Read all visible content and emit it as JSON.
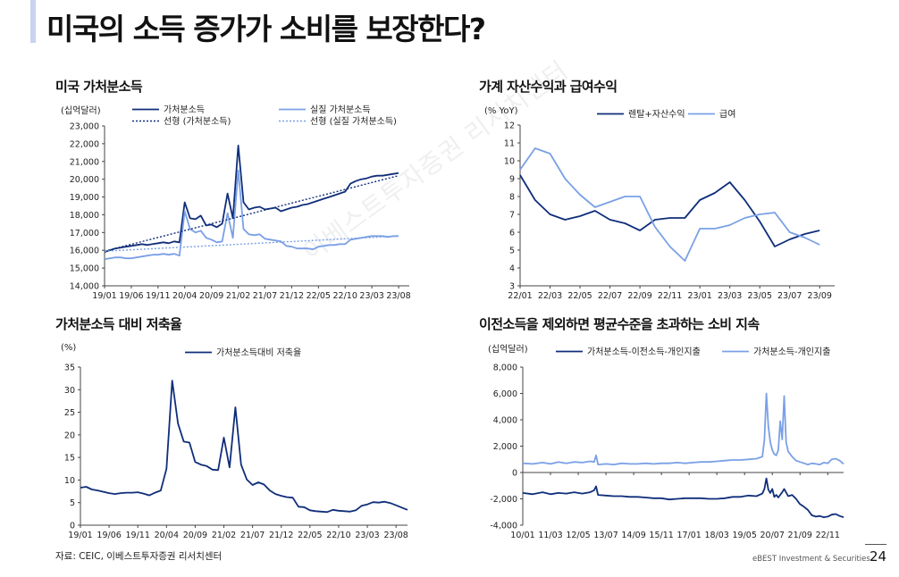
{
  "page": {
    "title": "미국의 소득 증가가 소비를 보장한다?",
    "source": "자료: CEIC, 이베스트투자증권 리서치센터",
    "brand": "eBEST Investment & Securities",
    "page_number": "24",
    "watermark": "이베스트투자증권 리서치센터"
  },
  "colors": {
    "dark": "#0f2e7a",
    "light": "#7aa0e6"
  },
  "chart_data": [
    {
      "id": "c1",
      "type": "line",
      "title": "미국 가처분소득",
      "unit": "(십억달러)",
      "ylim": [
        14000,
        23000
      ],
      "yticks": [
        "14,000",
        "15,000",
        "16,000",
        "17,000",
        "18,000",
        "19,000",
        "20,000",
        "21,000",
        "22,000",
        "23,000"
      ],
      "xlim": [
        0,
        57
      ],
      "xtick_pos": [
        0,
        5,
        10,
        15,
        20,
        25,
        30,
        35,
        40,
        45,
        50,
        55
      ],
      "xticks": [
        "19/01",
        "19/06",
        "19/11",
        "20/04",
        "20/09",
        "21/02",
        "21/07",
        "21/12",
        "22/05",
        "22/10",
        "23/03",
        "23/08"
      ],
      "legend": [
        "가처분소득",
        "실질 가처분소득",
        "선형 (가처분소득)",
        "선형 (실질 가처분소득)"
      ],
      "series": [
        {
          "name": "가처분소득",
          "style": "dark",
          "values": [
            15900,
            16000,
            16100,
            16150,
            16200,
            16250,
            16300,
            16350,
            16300,
            16350,
            16400,
            16450,
            16400,
            16500,
            16450,
            18700,
            17800,
            17750,
            17950,
            17400,
            17450,
            17300,
            17500,
            19200,
            17800,
            21900,
            18700,
            18300,
            18400,
            18450,
            18300,
            18350,
            18400,
            18200,
            18300,
            18400,
            18450,
            18550,
            18600,
            18700,
            18800,
            18900,
            19000,
            19100,
            19200,
            19300,
            19750,
            19900,
            20000,
            20050,
            20150,
            20200,
            20200,
            20250,
            20300,
            20350
          ]
        },
        {
          "name": "실질 가처분소득",
          "style": "light",
          "values": [
            15500,
            15550,
            15600,
            15600,
            15550,
            15550,
            15600,
            15650,
            15700,
            15750,
            15750,
            15800,
            15750,
            15800,
            15700,
            18200,
            17200,
            17000,
            17100,
            16700,
            16600,
            16450,
            16500,
            18100,
            16700,
            20500,
            17200,
            16900,
            16850,
            16900,
            16650,
            16600,
            16550,
            16500,
            16250,
            16200,
            16100,
            16100,
            16100,
            16050,
            16200,
            16250,
            16300,
            16300,
            16350,
            16350,
            16600,
            16650,
            16700,
            16750,
            16800,
            16800,
            16800,
            16750,
            16800,
            16800
          ]
        },
        {
          "name": "선형 (가처분소득)",
          "style": "dark-dotted",
          "from": [
            0,
            15950
          ],
          "to": [
            55,
            20200
          ]
        },
        {
          "name": "선형 (실질 가처분소득)",
          "style": "light-dotted",
          "from": [
            0,
            15950
          ],
          "to": [
            55,
            16800
          ]
        }
      ]
    },
    {
      "id": "c2",
      "type": "line",
      "title": "가계 자산수익과 급여수익",
      "unit": "(% YoY)",
      "ylim": [
        3,
        12
      ],
      "yticks": [
        "3",
        "4",
        "5",
        "6",
        "7",
        "8",
        "9",
        "10",
        "11",
        "12"
      ],
      "xlim": [
        0,
        21
      ],
      "xtick_pos": [
        0,
        2,
        4,
        6,
        8,
        10,
        12,
        14,
        16,
        18,
        20
      ],
      "xticks": [
        "22/01",
        "22/03",
        "22/05",
        "22/07",
        "22/09",
        "22/11",
        "23/01",
        "23/03",
        "23/05",
        "23/07",
        "23/09"
      ],
      "legend": [
        "렌탈+자산수익",
        "급여"
      ],
      "series": [
        {
          "name": "렌탈+자산수익",
          "style": "dark",
          "values": [
            9.2,
            7.8,
            7.0,
            6.7,
            6.9,
            7.2,
            6.7,
            6.5,
            6.1,
            6.7,
            6.8,
            6.8,
            7.8,
            8.2,
            8.8,
            7.8,
            6.6,
            5.2,
            5.6,
            5.9,
            6.1
          ]
        },
        {
          "name": "급여",
          "style": "light",
          "values": [
            9.5,
            10.7,
            10.4,
            9.0,
            8.1,
            7.4,
            7.7,
            8.0,
            8.0,
            6.3,
            5.2,
            4.4,
            6.2,
            6.2,
            6.4,
            6.8,
            7.0,
            7.1,
            6.0,
            5.7,
            5.3
          ]
        }
      ]
    },
    {
      "id": "c3",
      "type": "line",
      "title": "가처분소득 대비 저축율",
      "unit": "(%)",
      "ylim": [
        0,
        35
      ],
      "yticks": [
        "0",
        "5",
        "10",
        "15",
        "20",
        "25",
        "30",
        "35"
      ],
      "xlim": [
        0,
        57
      ],
      "xtick_pos": [
        0,
        5,
        10,
        15,
        20,
        25,
        30,
        35,
        40,
        45,
        50,
        55
      ],
      "xticks": [
        "19/01",
        "19/06",
        "19/11",
        "20/04",
        "20/09",
        "21/02",
        "21/07",
        "21/12",
        "22/05",
        "22/10",
        "23/03",
        "23/08"
      ],
      "legend": [
        "가처분소득대비 저축율"
      ],
      "series": [
        {
          "name": "가처분소득대비 저축율",
          "style": "dark",
          "values": [
            8.3,
            8.5,
            7.9,
            7.7,
            7.4,
            7.1,
            6.9,
            7.1,
            7.2,
            7.2,
            7.3,
            7.0,
            6.6,
            7.2,
            7.7,
            12.5,
            32.0,
            22.5,
            18.5,
            18.3,
            14.0,
            13.4,
            13.1,
            12.3,
            12.2,
            19.4,
            12.8,
            26.1,
            13.4,
            10.1,
            8.9,
            9.5,
            9.0,
            7.7,
            6.9,
            6.5,
            6.2,
            6.1,
            4.1,
            4.0,
            3.3,
            3.1,
            3.0,
            2.9,
            3.4,
            3.2,
            3.1,
            3.0,
            3.3,
            4.3,
            4.6,
            5.1,
            5.0,
            5.2,
            4.9,
            4.4,
            3.9,
            3.4
          ]
        }
      ]
    },
    {
      "id": "c4",
      "type": "line",
      "title": "이전소득을 제외하면 평균수준을 초과하는 소비 지속",
      "unit": "(십억달러)",
      "ylim": [
        -4000,
        8000
      ],
      "yticks": [
        "-4,000",
        "-2,000",
        "0",
        "2,000",
        "4,000",
        "6,000",
        "8,000"
      ],
      "xlim": [
        0,
        162
      ],
      "xtick_pos": [
        0,
        14,
        28,
        42,
        56,
        70,
        84,
        98,
        112,
        126,
        140,
        154
      ],
      "xticks": [
        "10/01",
        "11/03",
        "12/05",
        "13/07",
        "14/09",
        "15/11",
        "17/01",
        "18/03",
        "19/05",
        "20/07",
        "21/09",
        "22/11"
      ],
      "legend": [
        "가처분소득-이전소득-개인지출",
        "가처분소득-개인지출"
      ],
      "series": [
        {
          "name": "가처분소득-이전소득-개인지출",
          "style": "dark",
          "points": [
            [
              0,
              -1550
            ],
            [
              5,
              -1650
            ],
            [
              10,
              -1500
            ],
            [
              14,
              -1650
            ],
            [
              18,
              -1550
            ],
            [
              22,
              -1600
            ],
            [
              26,
              -1500
            ],
            [
              30,
              -1600
            ],
            [
              34,
              -1500
            ],
            [
              36,
              -1350
            ],
            [
              37,
              -1050
            ],
            [
              38,
              -1700
            ],
            [
              42,
              -1750
            ],
            [
              46,
              -1800
            ],
            [
              50,
              -1800
            ],
            [
              54,
              -1850
            ],
            [
              58,
              -1850
            ],
            [
              62,
              -1900
            ],
            [
              66,
              -1950
            ],
            [
              70,
              -1950
            ],
            [
              74,
              -2050
            ],
            [
              78,
              -2000
            ],
            [
              82,
              -1950
            ],
            [
              86,
              -1950
            ],
            [
              90,
              -1950
            ],
            [
              94,
              -2000
            ],
            [
              98,
              -2000
            ],
            [
              102,
              -1950
            ],
            [
              106,
              -1850
            ],
            [
              110,
              -1850
            ],
            [
              114,
              -1750
            ],
            [
              118,
              -1800
            ],
            [
              121,
              -1600
            ],
            [
              122,
              -1250
            ],
            [
              123,
              -450
            ],
            [
              124,
              -1300
            ],
            [
              125,
              -1550
            ],
            [
              126,
              -1250
            ],
            [
              127,
              -1850
            ],
            [
              128,
              -1700
            ],
            [
              129,
              -1900
            ],
            [
              131,
              -1500
            ],
            [
              132,
              -1250
            ],
            [
              134,
              -1800
            ],
            [
              136,
              -1700
            ],
            [
              138,
              -2000
            ],
            [
              140,
              -2400
            ],
            [
              142,
              -2600
            ],
            [
              144,
              -2850
            ],
            [
              146,
              -3250
            ],
            [
              148,
              -3350
            ],
            [
              150,
              -3300
            ],
            [
              152,
              -3400
            ],
            [
              154,
              -3350
            ],
            [
              156,
              -3200
            ],
            [
              158,
              -3150
            ],
            [
              160,
              -3300
            ],
            [
              162,
              -3400
            ]
          ]
        },
        {
          "name": "가처분소득-개인지출",
          "style": "light",
          "points": [
            [
              0,
              700
            ],
            [
              5,
              650
            ],
            [
              10,
              750
            ],
            [
              14,
              650
            ],
            [
              18,
              800
            ],
            [
              22,
              700
            ],
            [
              26,
              800
            ],
            [
              30,
              750
            ],
            [
              34,
              850
            ],
            [
              36,
              800
            ],
            [
              37,
              1300
            ],
            [
              38,
              600
            ],
            [
              42,
              650
            ],
            [
              46,
              600
            ],
            [
              50,
              700
            ],
            [
              54,
              650
            ],
            [
              58,
              650
            ],
            [
              62,
              700
            ],
            [
              66,
              650
            ],
            [
              70,
              700
            ],
            [
              74,
              700
            ],
            [
              78,
              750
            ],
            [
              82,
              700
            ],
            [
              86,
              750
            ],
            [
              90,
              800
            ],
            [
              94,
              800
            ],
            [
              98,
              850
            ],
            [
              102,
              900
            ],
            [
              106,
              950
            ],
            [
              110,
              950
            ],
            [
              114,
              1000
            ],
            [
              118,
              1050
            ],
            [
              121,
              1200
            ],
            [
              122,
              2500
            ],
            [
              123,
              6000
            ],
            [
              124,
              3500
            ],
            [
              125,
              2300
            ],
            [
              126,
              1700
            ],
            [
              127,
              1400
            ],
            [
              128,
              1300
            ],
            [
              129,
              1700
            ],
            [
              130,
              3900
            ],
            [
              131,
              2500
            ],
            [
              132,
              5800
            ],
            [
              133,
              2300
            ],
            [
              134,
              1600
            ],
            [
              136,
              1200
            ],
            [
              138,
              900
            ],
            [
              140,
              800
            ],
            [
              142,
              700
            ],
            [
              144,
              600
            ],
            [
              146,
              700
            ],
            [
              148,
              650
            ],
            [
              150,
              600
            ],
            [
              152,
              750
            ],
            [
              154,
              700
            ],
            [
              156,
              1000
            ],
            [
              158,
              1050
            ],
            [
              160,
              900
            ],
            [
              162,
              650
            ]
          ]
        }
      ]
    }
  ]
}
